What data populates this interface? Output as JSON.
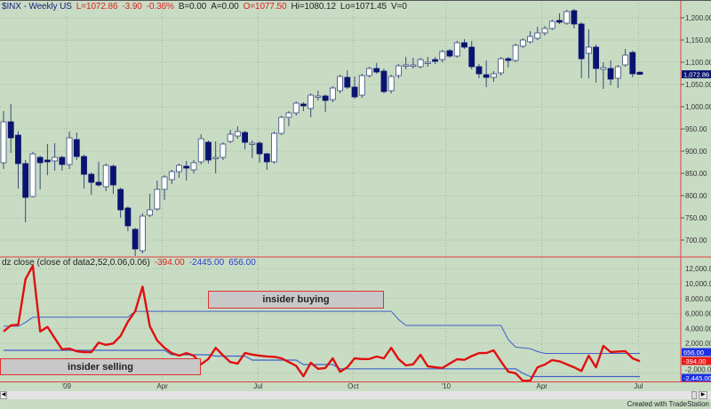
{
  "header": {
    "symbol": "$INX - Weekly  US",
    "last": "L=1072.86",
    "change": "-3.90",
    "change_pct": "-0.36%",
    "bid": "B=0.00",
    "ask": "A=0.00",
    "open": "O=1077.50",
    "high": "Hi=1080.12",
    "low": "Lo=1071.45",
    "volume": "V=0"
  },
  "indicator": {
    "label": "dz close (close of data2,52,0.06,0.06)",
    "value_red": "-394.00",
    "value_lower": "-2445.00",
    "value_upper": "656.00"
  },
  "annotations": {
    "buying": "insider buying",
    "selling": "insider selling"
  },
  "axis_labels": {
    "last_price": "1,072.86",
    "upper_band": "656.00",
    "red_value": "-394.00",
    "lower_band": "-2,445.00"
  },
  "credit": "Created with TradeStation",
  "colors": {
    "background": "#c8dcc4",
    "candle_down": "#0a1470",
    "candle_up": "#ffffff",
    "indicator": "#e01010",
    "bands": "#4060c8",
    "divider": "#e04040"
  },
  "chart_data": [
    {
      "type": "candlestick",
      "title": "$INX - Weekly",
      "ylim": [
        700,
        1234
      ],
      "y_ticks": [
        700,
        750,
        800,
        850,
        900,
        950,
        1000,
        1050,
        1100,
        1150,
        1200
      ],
      "y_tick_labels": [
        "700.00",
        "750.00",
        "800.00",
        "850.00",
        "900.00",
        "950.00",
        "1,000.00",
        "1,050.00",
        "1,100.00",
        "1,150.00",
        "1,200.00"
      ],
      "x_ticks": [
        {
          "label": "'09",
          "bar": 8.6
        },
        {
          "label": "Apr",
          "bar": 21.7
        },
        {
          "label": "Jul",
          "bar": 34.8
        },
        {
          "label": "Oct",
          "bar": 47.8
        },
        {
          "label": "'10",
          "bar": 60.5
        },
        {
          "label": "Apr",
          "bar": 73.6
        },
        {
          "label": "Jul",
          "bar": 86.8
        }
      ],
      "grid": true,
      "ohlc": [
        [
          874,
          990,
          860,
          966
        ],
        [
          966,
          1006,
          896,
          930
        ],
        [
          936,
          945,
          816,
          872
        ],
        [
          872,
          880,
          740,
          796
        ],
        [
          798,
          898,
          796,
          894
        ],
        [
          886,
          890,
          814,
          874
        ],
        [
          880,
          916,
          846,
          876
        ],
        [
          878,
          918,
          856,
          886
        ],
        [
          886,
          890,
          856,
          870
        ],
        [
          870,
          944,
          860,
          930
        ],
        [
          926,
          942,
          880,
          888
        ],
        [
          888,
          892,
          816,
          848
        ],
        [
          848,
          852,
          802,
          830
        ],
        [
          830,
          876,
          820,
          824
        ],
        [
          820,
          872,
          810,
          868
        ],
        [
          866,
          870,
          804,
          824
        ],
        [
          814,
          818,
          750,
          768
        ],
        [
          772,
          776,
          720,
          732
        ],
        [
          724,
          728,
          664,
          680
        ],
        [
          676,
          760,
          670,
          754
        ],
        [
          756,
          804,
          752,
          768
        ],
        [
          770,
          834,
          766,
          814
        ],
        [
          814,
          846,
          790,
          842
        ],
        [
          836,
          858,
          826,
          854
        ],
        [
          854,
          872,
          840,
          868
        ],
        [
          866,
          878,
          834,
          862
        ],
        [
          858,
          880,
          850,
          874
        ],
        [
          876,
          938,
          870,
          928
        ],
        [
          920,
          924,
          872,
          880
        ],
        [
          886,
          922,
          850,
          886
        ],
        [
          886,
          920,
          880,
          916
        ],
        [
          922,
          948,
          918,
          938
        ],
        [
          934,
          956,
          928,
          944
        ],
        [
          942,
          946,
          904,
          920
        ],
        [
          918,
          924,
          884,
          918
        ],
        [
          918,
          922,
          874,
          894
        ],
        [
          894,
          896,
          858,
          876
        ],
        [
          876,
          944,
          872,
          940
        ],
        [
          940,
          980,
          936,
          976
        ],
        [
          976,
          990,
          956,
          986
        ],
        [
          986,
          1012,
          980,
          1008
        ],
        [
          1006,
          1010,
          990,
          1002
        ],
        [
          996,
          1030,
          976,
          1026
        ],
        [
          1024,
          1036,
          1014,
          1024
        ],
        [
          1024,
          1028,
          988,
          1014
        ],
        [
          1016,
          1046,
          1010,
          1042
        ],
        [
          1036,
          1072,
          1030,
          1068
        ],
        [
          1066,
          1082,
          1040,
          1044
        ],
        [
          1044,
          1068,
          1018,
          1022
        ],
        [
          1026,
          1074,
          1020,
          1070
        ],
        [
          1070,
          1090,
          1066,
          1086
        ],
        [
          1086,
          1098,
          1074,
          1078
        ],
        [
          1080,
          1086,
          1030,
          1034
        ],
        [
          1036,
          1072,
          1030,
          1068
        ],
        [
          1070,
          1096,
          1064,
          1092
        ],
        [
          1094,
          1112,
          1084,
          1094
        ],
        [
          1094,
          1110,
          1086,
          1094
        ],
        [
          1090,
          1110,
          1086,
          1106
        ],
        [
          1100,
          1112,
          1090,
          1100
        ],
        [
          1106,
          1112,
          1096,
          1102
        ],
        [
          1106,
          1128,
          1100,
          1124
        ],
        [
          1126,
          1130,
          1110,
          1114
        ],
        [
          1114,
          1148,
          1110,
          1144
        ],
        [
          1144,
          1152,
          1130,
          1134
        ],
        [
          1134,
          1148,
          1084,
          1090
        ],
        [
          1090,
          1096,
          1064,
          1074
        ],
        [
          1072,
          1104,
          1044,
          1066
        ],
        [
          1066,
          1080,
          1056,
          1074
        ],
        [
          1076,
          1112,
          1070,
          1108
        ],
        [
          1108,
          1112,
          1088,
          1104
        ],
        [
          1104,
          1142,
          1100,
          1138
        ],
        [
          1136,
          1154,
          1132,
          1150
        ],
        [
          1146,
          1170,
          1142,
          1158
        ],
        [
          1154,
          1180,
          1150,
          1166
        ],
        [
          1166,
          1182,
          1160,
          1176
        ],
        [
          1176,
          1196,
          1172,
          1192
        ],
        [
          1194,
          1210,
          1186,
          1190
        ],
        [
          1188,
          1218,
          1184,
          1214
        ],
        [
          1216,
          1220,
          1176,
          1186
        ],
        [
          1186,
          1190,
          1064,
          1108
        ],
        [
          1120,
          1174,
          1064,
          1134
        ],
        [
          1134,
          1140,
          1054,
          1086
        ],
        [
          1084,
          1100,
          1040,
          1088
        ],
        [
          1086,
          1104,
          1048,
          1062
        ],
        [
          1064,
          1094,
          1042,
          1090
        ],
        [
          1094,
          1130,
          1090,
          1116
        ],
        [
          1122,
          1126,
          1066,
          1074
        ],
        [
          1077.5,
          1080.12,
          1071.45,
          1072.86
        ]
      ]
    },
    {
      "type": "line",
      "title": "dz close (close of data2,52,0.06,0.06)",
      "ylim": [
        -3000,
        12500
      ],
      "y_ticks": [
        -2000,
        2000,
        4000,
        6000,
        8000,
        10000,
        12000
      ],
      "y_tick_labels": [
        "-2,000.00",
        "2,000.00",
        "4,000.00",
        "6,000.00",
        "8,000.00",
        "10,000.00",
        "12,000.00"
      ],
      "grid": true,
      "series": [
        {
          "values": [
            3600,
            4400,
            4500,
            10600,
            12400,
            3600,
            4200,
            2700,
            1200,
            1300,
            950,
            830,
            830,
            2100,
            1800,
            2000,
            3000,
            4900,
            6300,
            9600,
            4300,
            2400,
            1400,
            700,
            360,
            700,
            360,
            -800,
            -100,
            1400,
            400,
            -500,
            -700,
            700,
            500,
            360,
            250,
            200,
            0,
            -500,
            -1000,
            -2400,
            -600,
            -1400,
            -1300,
            0,
            -1800,
            -1200,
            0,
            -100,
            -100,
            240,
            0,
            1400,
            -100,
            -950,
            -800,
            480,
            -1070,
            -1200,
            -1300,
            -700,
            -120,
            -200,
            300,
            700,
            700,
            1070,
            -400,
            -1800,
            -2000,
            -3000,
            -3000,
            -1200,
            -830,
            -240,
            -400,
            -800,
            -1200,
            -1700,
            360,
            -1200,
            1670,
            830,
            900,
            950,
            0,
            -394
          ]
        },
        {
          "values": [
            4300,
            4300,
            4300,
            4800,
            5500,
            5500,
            5500,
            5500,
            5500,
            5500,
            5500,
            5500,
            5500,
            5500,
            5500,
            5500,
            5500,
            5500,
            6300,
            6300,
            6300,
            6300,
            6300,
            6300,
            6300,
            6300,
            6300,
            6300,
            6300,
            6300,
            6300,
            6300,
            6300,
            6300,
            6300,
            6300,
            6300,
            6300,
            6300,
            6300,
            6300,
            6300,
            6300,
            6300,
            6300,
            6300,
            6300,
            6300,
            6300,
            6300,
            6300,
            6300,
            6300,
            6300,
            5200,
            4400,
            4400,
            4400,
            4400,
            4400,
            4400,
            4400,
            4400,
            4400,
            4400,
            4400,
            4400,
            4400,
            4400,
            2500,
            1500,
            1400,
            1300,
            900,
            656,
            656,
            656,
            656,
            656,
            656,
            656,
            656,
            656,
            656,
            656,
            656,
            656,
            656
          ]
        },
        {
          "values": [
            1070,
            1070,
            1070,
            1070,
            1070,
            1070,
            1070,
            1070,
            1070,
            1070,
            1070,
            1070,
            1070,
            1070,
            1070,
            1070,
            1070,
            1070,
            1070,
            1070,
            1070,
            1070,
            1070,
            480,
            480,
            480,
            480,
            480,
            480,
            300,
            300,
            300,
            300,
            300,
            -240,
            -240,
            -240,
            -240,
            -240,
            -240,
            -240,
            -830,
            -830,
            -830,
            -830,
            -830,
            -1400,
            -1400,
            -1400,
            -1400,
            -1400,
            -1400,
            -1400,
            -1400,
            -1400,
            -1400,
            -1400,
            -1400,
            -1400,
            -1400,
            -1400,
            -1400,
            -1400,
            -1400,
            -1400,
            -1400,
            -1400,
            -1400,
            -1400,
            -1400,
            -1400,
            -2000,
            -2445,
            -2445,
            -2445,
            -2445,
            -2445,
            -2445,
            -2445,
            -2445,
            -2445,
            -2445,
            -2445,
            -2445,
            -2445,
            -2445,
            -2445,
            -2445
          ]
        }
      ]
    }
  ]
}
